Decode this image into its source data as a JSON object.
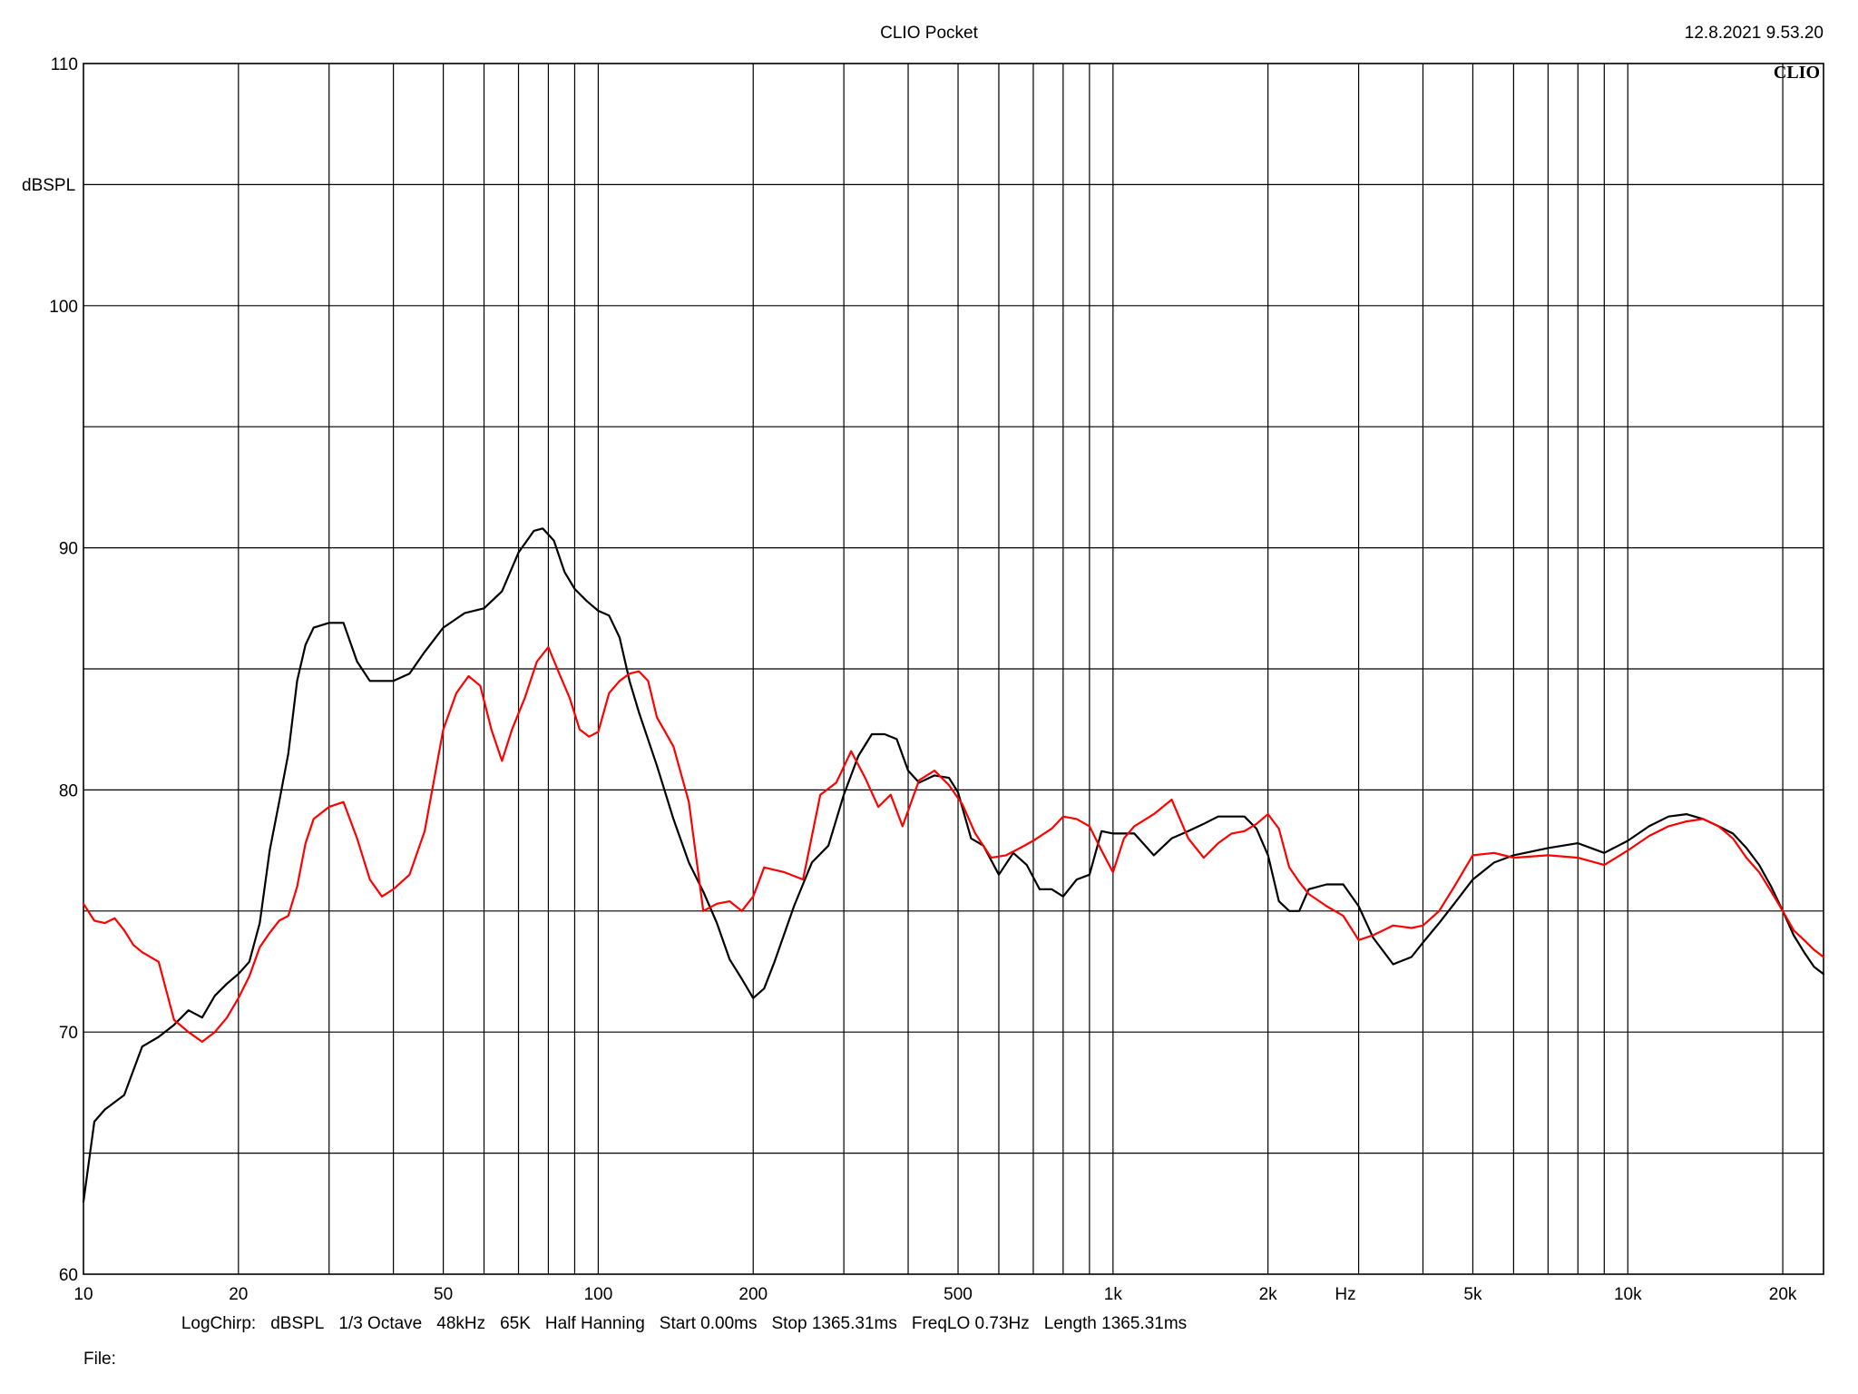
{
  "header": {
    "title": "CLIO Pocket",
    "timestamp": "12.8.2021 9.53.20",
    "logo_text": "CLIO"
  },
  "footer": {
    "settings": [
      "LogChirp:",
      "dBSPL",
      "1/3 Octave",
      "48kHz",
      "65K",
      "Half Hanning",
      "Start 0.00ms",
      "Stop 1365.31ms",
      "FreqLO 0.73Hz",
      "Length 1365.31ms"
    ],
    "file_label": "File:"
  },
  "chart_data": {
    "type": "line",
    "title": "CLIO Pocket",
    "xlabel": "Hz",
    "ylabel": "dBSPL",
    "xscale": "log",
    "xlim": [
      10,
      24000
    ],
    "ylim": [
      60,
      110
    ],
    "grid": true,
    "x_ticks": [
      {
        "value": 10,
        "label": "10"
      },
      {
        "value": 20,
        "label": "20"
      },
      {
        "value": 50,
        "label": "50"
      },
      {
        "value": 100,
        "label": "100"
      },
      {
        "value": 200,
        "label": "200"
      },
      {
        "value": 500,
        "label": "500"
      },
      {
        "value": 1000,
        "label": "1k"
      },
      {
        "value": 2000,
        "label": "2k"
      },
      {
        "value": 5000,
        "label": "5k"
      },
      {
        "value": 10000,
        "label": "10k"
      },
      {
        "value": 20000,
        "label": "20k"
      }
    ],
    "y_ticks": [
      {
        "value": 60,
        "label": "60"
      },
      {
        "value": 70,
        "label": "70"
      },
      {
        "value": 80,
        "label": "80"
      },
      {
        "value": 90,
        "label": "90"
      },
      {
        "value": 100,
        "label": "100"
      },
      {
        "value": 110,
        "label": "110"
      }
    ],
    "series": [
      {
        "color": "#000000",
        "points": [
          [
            10,
            63
          ],
          [
            10.5,
            66.3
          ],
          [
            11,
            66.8
          ],
          [
            12,
            67.4
          ],
          [
            13,
            69.4
          ],
          [
            14,
            69.8
          ],
          [
            15,
            70.3
          ],
          [
            16,
            70.9
          ],
          [
            17,
            70.6
          ],
          [
            18,
            71.5
          ],
          [
            19,
            72.0
          ],
          [
            20,
            72.4
          ],
          [
            21,
            72.9
          ],
          [
            22,
            74.5
          ],
          [
            23,
            77.5
          ],
          [
            24,
            79.5
          ],
          [
            25,
            81.5
          ],
          [
            26,
            84.5
          ],
          [
            27,
            86.0
          ],
          [
            28,
            86.7
          ],
          [
            30,
            86.9
          ],
          [
            32,
            86.9
          ],
          [
            34,
            85.3
          ],
          [
            36,
            84.5
          ],
          [
            38,
            84.5
          ],
          [
            40,
            84.5
          ],
          [
            43,
            84.8
          ],
          [
            46,
            85.7
          ],
          [
            50,
            86.7
          ],
          [
            55,
            87.3
          ],
          [
            60,
            87.5
          ],
          [
            65,
            88.2
          ],
          [
            70,
            89.8
          ],
          [
            75,
            90.7
          ],
          [
            78,
            90.8
          ],
          [
            82,
            90.3
          ],
          [
            86,
            89.0
          ],
          [
            90,
            88.3
          ],
          [
            95,
            87.8
          ],
          [
            100,
            87.4
          ],
          [
            105,
            87.2
          ],
          [
            110,
            86.3
          ],
          [
            115,
            84.5
          ],
          [
            120,
            83.2
          ],
          [
            130,
            81.0
          ],
          [
            140,
            78.8
          ],
          [
            150,
            77.0
          ],
          [
            160,
            75.8
          ],
          [
            170,
            74.5
          ],
          [
            180,
            73.0
          ],
          [
            190,
            72.2
          ],
          [
            200,
            71.4
          ],
          [
            210,
            71.8
          ],
          [
            220,
            72.9
          ],
          [
            240,
            75.2
          ],
          [
            260,
            77.0
          ],
          [
            280,
            77.7
          ],
          [
            300,
            79.8
          ],
          [
            320,
            81.4
          ],
          [
            340,
            82.3
          ],
          [
            360,
            82.3
          ],
          [
            380,
            82.1
          ],
          [
            400,
            80.8
          ],
          [
            420,
            80.3
          ],
          [
            450,
            80.6
          ],
          [
            480,
            80.5
          ],
          [
            500,
            79.9
          ],
          [
            530,
            78.0
          ],
          [
            560,
            77.7
          ],
          [
            600,
            76.5
          ],
          [
            640,
            77.4
          ],
          [
            680,
            76.9
          ],
          [
            720,
            75.9
          ],
          [
            760,
            75.9
          ],
          [
            800,
            75.6
          ],
          [
            850,
            76.3
          ],
          [
            900,
            76.5
          ],
          [
            950,
            78.3
          ],
          [
            1000,
            78.2
          ],
          [
            1100,
            78.2
          ],
          [
            1200,
            77.3
          ],
          [
            1300,
            78.0
          ],
          [
            1400,
            78.3
          ],
          [
            1500,
            78.6
          ],
          [
            1600,
            78.9
          ],
          [
            1700,
            78.9
          ],
          [
            1800,
            78.9
          ],
          [
            1900,
            78.4
          ],
          [
            2000,
            77.3
          ],
          [
            2100,
            75.4
          ],
          [
            2200,
            75.0
          ],
          [
            2300,
            75.0
          ],
          [
            2400,
            75.9
          ],
          [
            2600,
            76.1
          ],
          [
            2800,
            76.1
          ],
          [
            3000,
            75.2
          ],
          [
            3200,
            73.9
          ],
          [
            3500,
            72.8
          ],
          [
            3800,
            73.1
          ],
          [
            4000,
            73.7
          ],
          [
            4300,
            74.5
          ],
          [
            4600,
            75.3
          ],
          [
            5000,
            76.3
          ],
          [
            5500,
            77.0
          ],
          [
            6000,
            77.3
          ],
          [
            7000,
            77.6
          ],
          [
            8000,
            77.8
          ],
          [
            9000,
            77.4
          ],
          [
            10000,
            77.9
          ],
          [
            11000,
            78.5
          ],
          [
            12000,
            78.9
          ],
          [
            13000,
            79.0
          ],
          [
            14000,
            78.8
          ],
          [
            15000,
            78.5
          ],
          [
            16000,
            78.2
          ],
          [
            17000,
            77.6
          ],
          [
            18000,
            76.9
          ],
          [
            19000,
            76.0
          ],
          [
            20000,
            75.0
          ],
          [
            21000,
            74.0
          ],
          [
            22000,
            73.3
          ],
          [
            23000,
            72.7
          ],
          [
            24000,
            72.4
          ]
        ]
      },
      {
        "color": "#ff0000",
        "points": [
          [
            10,
            75.3
          ],
          [
            10.5,
            74.6
          ],
          [
            11,
            74.5
          ],
          [
            11.5,
            74.7
          ],
          [
            12,
            74.2
          ],
          [
            12.5,
            73.6
          ],
          [
            13,
            73.3
          ],
          [
            14,
            72.9
          ],
          [
            15,
            70.5
          ],
          [
            16,
            70.0
          ],
          [
            17,
            69.6
          ],
          [
            18,
            70.0
          ],
          [
            19,
            70.6
          ],
          [
            20,
            71.4
          ],
          [
            21,
            72.3
          ],
          [
            22,
            73.5
          ],
          [
            23,
            74.1
          ],
          [
            24,
            74.6
          ],
          [
            25,
            74.8
          ],
          [
            26,
            76.0
          ],
          [
            27,
            77.8
          ],
          [
            28,
            78.8
          ],
          [
            30,
            79.3
          ],
          [
            32,
            79.5
          ],
          [
            34,
            78.0
          ],
          [
            36,
            76.3
          ],
          [
            38,
            75.6
          ],
          [
            40,
            75.9
          ],
          [
            43,
            76.5
          ],
          [
            46,
            78.3
          ],
          [
            50,
            82.5
          ],
          [
            53,
            84.0
          ],
          [
            56,
            84.7
          ],
          [
            59,
            84.3
          ],
          [
            62,
            82.5
          ],
          [
            65,
            81.2
          ],
          [
            68,
            82.5
          ],
          [
            72,
            83.8
          ],
          [
            76,
            85.3
          ],
          [
            80,
            85.9
          ],
          [
            84,
            84.8
          ],
          [
            88,
            83.8
          ],
          [
            92,
            82.5
          ],
          [
            96,
            82.2
          ],
          [
            100,
            82.4
          ],
          [
            105,
            84.0
          ],
          [
            110,
            84.5
          ],
          [
            115,
            84.8
          ],
          [
            120,
            84.9
          ],
          [
            125,
            84.5
          ],
          [
            130,
            83.0
          ],
          [
            140,
            81.8
          ],
          [
            150,
            79.5
          ],
          [
            160,
            75.0
          ],
          [
            170,
            75.3
          ],
          [
            180,
            75.4
          ],
          [
            190,
            75.0
          ],
          [
            200,
            75.6
          ],
          [
            210,
            76.8
          ],
          [
            230,
            76.6
          ],
          [
            250,
            76.3
          ],
          [
            270,
            79.8
          ],
          [
            290,
            80.3
          ],
          [
            310,
            81.6
          ],
          [
            330,
            80.5
          ],
          [
            350,
            79.3
          ],
          [
            370,
            79.8
          ],
          [
            390,
            78.5
          ],
          [
            420,
            80.4
          ],
          [
            450,
            80.8
          ],
          [
            480,
            80.2
          ],
          [
            510,
            79.4
          ],
          [
            540,
            78.2
          ],
          [
            580,
            77.2
          ],
          [
            620,
            77.3
          ],
          [
            660,
            77.6
          ],
          [
            700,
            77.9
          ],
          [
            760,
            78.4
          ],
          [
            800,
            78.9
          ],
          [
            850,
            78.8
          ],
          [
            900,
            78.5
          ],
          [
            950,
            77.5
          ],
          [
            1000,
            76.6
          ],
          [
            1050,
            78.0
          ],
          [
            1100,
            78.5
          ],
          [
            1200,
            79.0
          ],
          [
            1300,
            79.6
          ],
          [
            1400,
            78.0
          ],
          [
            1500,
            77.2
          ],
          [
            1600,
            77.8
          ],
          [
            1700,
            78.2
          ],
          [
            1800,
            78.3
          ],
          [
            1900,
            78.6
          ],
          [
            2000,
            79.0
          ],
          [
            2100,
            78.4
          ],
          [
            2200,
            76.8
          ],
          [
            2300,
            76.2
          ],
          [
            2400,
            75.7
          ],
          [
            2600,
            75.2
          ],
          [
            2800,
            74.8
          ],
          [
            3000,
            73.8
          ],
          [
            3200,
            74.0
          ],
          [
            3500,
            74.4
          ],
          [
            3800,
            74.3
          ],
          [
            4000,
            74.4
          ],
          [
            4300,
            75.0
          ],
          [
            4600,
            76.0
          ],
          [
            5000,
            77.3
          ],
          [
            5500,
            77.4
          ],
          [
            6000,
            77.2
          ],
          [
            7000,
            77.3
          ],
          [
            8000,
            77.2
          ],
          [
            9000,
            76.9
          ],
          [
            10000,
            77.5
          ],
          [
            11000,
            78.1
          ],
          [
            12000,
            78.5
          ],
          [
            13000,
            78.7
          ],
          [
            14000,
            78.8
          ],
          [
            15000,
            78.5
          ],
          [
            16000,
            78.0
          ],
          [
            17000,
            77.2
          ],
          [
            18000,
            76.6
          ],
          [
            19000,
            75.8
          ],
          [
            20000,
            75.0
          ],
          [
            21000,
            74.2
          ],
          [
            22000,
            73.8
          ],
          [
            23000,
            73.4
          ],
          [
            24000,
            73.1
          ]
        ]
      }
    ]
  }
}
